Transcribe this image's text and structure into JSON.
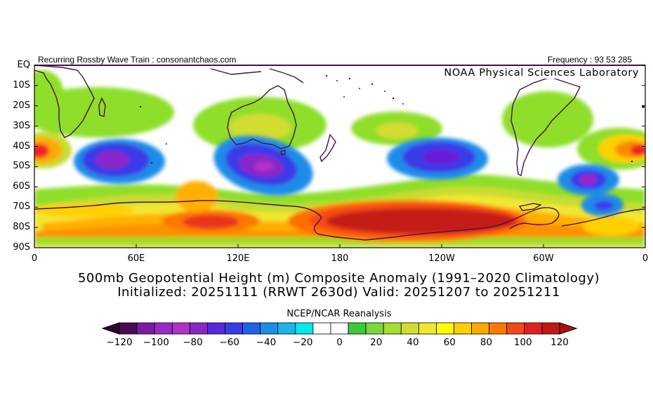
{
  "header": {
    "left": "Recurring Rossby Wave Train : consonantchaos.com",
    "right": "Frequency : 93 53 285",
    "lab": "NOAA Physical Sciences Laboratory"
  },
  "map": {
    "lat_labels": [
      "EQ",
      "10S",
      "20S",
      "30S",
      "40S",
      "50S",
      "60S",
      "70S",
      "80S",
      "90S"
    ],
    "lon_labels": [
      "0",
      "60E",
      "120E",
      "180",
      "120W",
      "60W",
      "0"
    ],
    "domain": {
      "lon_min": 0,
      "lon_max": 360,
      "lat_max": 0,
      "lat_min": -90
    },
    "anomaly_centers": [
      {
        "lon": 0,
        "lat": -43,
        "value": 120,
        "color": "#ee2020"
      },
      {
        "lon": 40,
        "lat": -48,
        "value": -80,
        "color": "#8a22d8"
      },
      {
        "lon": 130,
        "lat": -49,
        "value": -100,
        "color": "#9c1cc4"
      },
      {
        "lon": 225,
        "lat": -45,
        "value": -80,
        "color": "#6a1cd8"
      },
      {
        "lon": 307,
        "lat": -55,
        "value": -80,
        "color": "#a020c8"
      },
      {
        "lon": 318,
        "lat": -68,
        "value": -60,
        "color": "#2a5ae8"
      },
      {
        "lon": 100,
        "lat": -78,
        "value": 100,
        "color": "#e8341a"
      },
      {
        "lon": 220,
        "lat": -78,
        "value": 120,
        "color": "#c41a14"
      },
      {
        "lon": 128,
        "lat": -30,
        "value": 40,
        "color": "#e6dc30"
      },
      {
        "lon": 193,
        "lat": -32,
        "value": 40,
        "color": "#e6dc30"
      }
    ]
  },
  "titles": {
    "line1": "500mb Geopotential Height (m) Composite Anomaly (1991–2020 Climatology)",
    "line2": "Initialized: 20251111 (RRWT 2630d) Valid: 20251207 to 20251211"
  },
  "colorbar": {
    "source": "NCEP/NCAR Reanalysis",
    "labels": [
      "−120",
      "−100",
      "−80",
      "−60",
      "−40",
      "−20",
      "0",
      "20",
      "40",
      "60",
      "80",
      "100",
      "120"
    ],
    "colors": [
      "#4b0a52",
      "#7a1aa0",
      "#9a2ac8",
      "#b030c8",
      "#8a26c8",
      "#5a28dc",
      "#3a3ae8",
      "#1e64e8",
      "#1e8ce8",
      "#1eb4e8",
      "#00e8e8",
      "#ffffff",
      "#ffffff",
      "#3cc83c",
      "#7ad83c",
      "#a8dc32",
      "#d2dc32",
      "#f0e632",
      "#ffff00",
      "#ffd000",
      "#ffa800",
      "#ff7800",
      "#f44818",
      "#e02020",
      "#c01818"
    ],
    "left_arrow_color": "#2a0a30",
    "right_arrow_color": "#b01010"
  }
}
